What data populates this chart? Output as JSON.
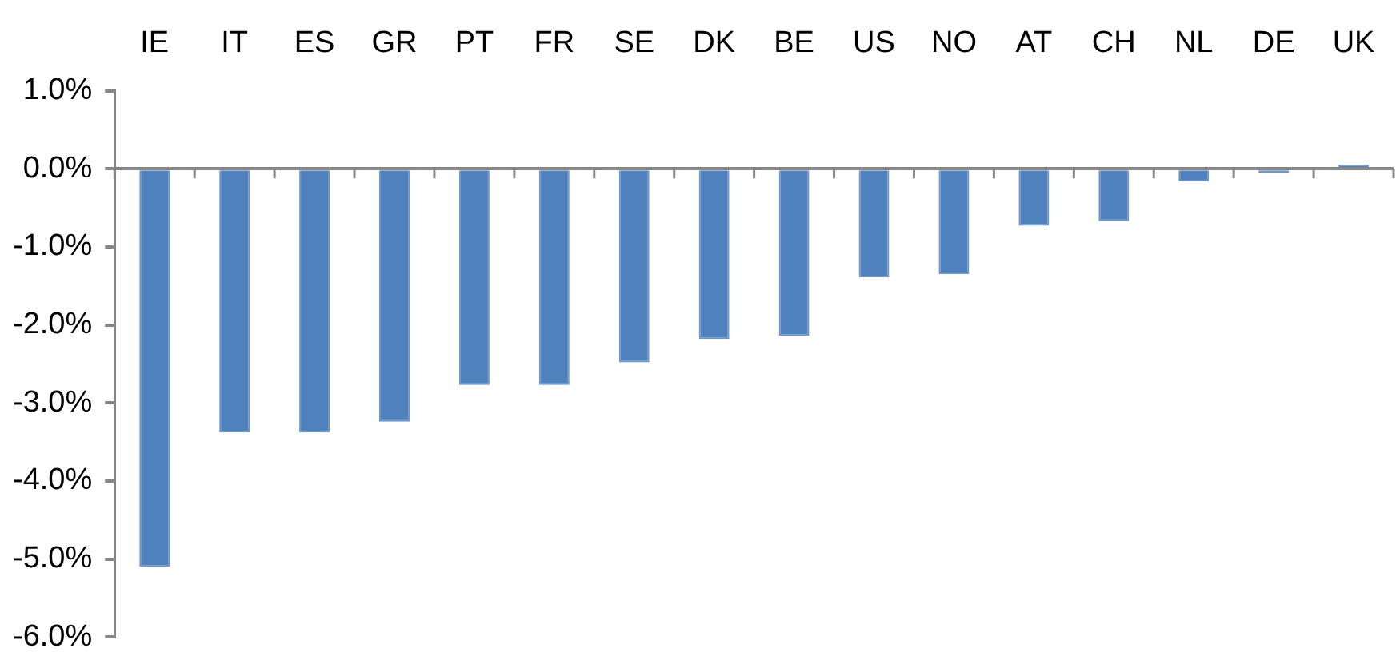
{
  "chart_data": {
    "type": "bar",
    "categories": [
      "IE",
      "IT",
      "ES",
      "GR",
      "PT",
      "FR",
      "SE",
      "DK",
      "BE",
      "US",
      "NO",
      "AT",
      "CH",
      "NL",
      "DE",
      "UK"
    ],
    "values": [
      -5.1,
      -3.38,
      -3.38,
      -3.24,
      -2.77,
      -2.77,
      -2.48,
      -2.18,
      -2.14,
      -1.39,
      -1.35,
      -0.73,
      -0.67,
      -0.16,
      -0.05,
      0.05
    ],
    "color": "#4f81bd",
    "ylim": [
      -6,
      1
    ],
    "yticks": [
      {
        "value": 1,
        "label": "1.0%"
      },
      {
        "value": 0,
        "label": "0.0%"
      },
      {
        "value": -1,
        "label": "-1.0%"
      },
      {
        "value": -2,
        "label": "-2.0%"
      },
      {
        "value": -3,
        "label": "-3.0%"
      },
      {
        "value": -4,
        "label": "-4.0%"
      },
      {
        "value": -5,
        "label": "-5.0%"
      },
      {
        "value": -6,
        "label": "-6.0%"
      }
    ]
  }
}
